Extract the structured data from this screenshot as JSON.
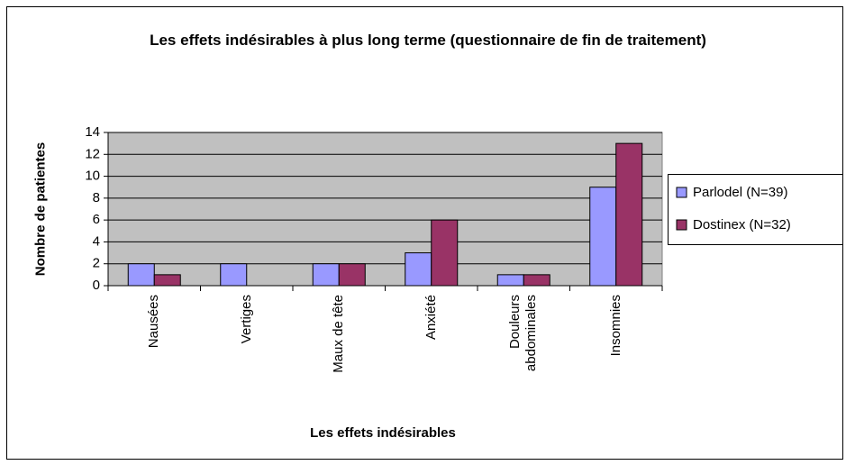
{
  "chart_data": {
    "type": "bar",
    "title": "Les effets indésirables à plus long terme (questionnaire de fin de traitement)",
    "x_label": "Les effets indésirables",
    "y_label": "Nombre de patientes",
    "categories": [
      "Nausées",
      "Vertiges",
      "Maux de tête",
      "Anxiété",
      "Douleurs abdominales",
      "Insomnies"
    ],
    "series": [
      {
        "name": "Parlodel (N=39)",
        "color": "#9999ff",
        "values": [
          2,
          2,
          2,
          3,
          1,
          9
        ]
      },
      {
        "name": "Dostinex (N=32)",
        "color": "#993366",
        "values": [
          1,
          0,
          2,
          6,
          1,
          13
        ]
      }
    ],
    "ylim": [
      0,
      14
    ],
    "yticks": [
      0,
      2,
      4,
      6,
      8,
      10,
      12,
      14
    ],
    "grid": true,
    "legend": "right"
  }
}
